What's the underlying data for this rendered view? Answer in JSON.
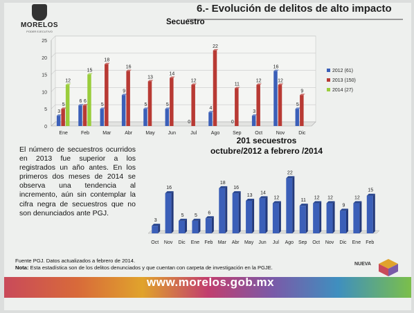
{
  "header": {
    "logo_text": "MORELOS",
    "logo_sub": "PODER EJECUTIVO",
    "page_title": "6.- Evolución de delitos de alto impacto"
  },
  "paragraph": "El número de secuestros ocurridos en 2013 fue superior a los registrados un año antes. En los primeros dos meses de 2014 se observa una tendencia al incremento, aún sin contemplar la cifra negra de secuestros que no son denunciados ante PGJ.",
  "footer": {
    "source": "Fuente PGJ. Datos actualizados a febrero de 2014.",
    "note_label": "Nota:",
    "note_text": "Esta estadística son de los delitos denunciados y que cuentan con carpeta de investigación en la PGJE."
  },
  "banner": {
    "url": "www.morelos.gob.mx",
    "badge": "NUEVA"
  },
  "colors": {
    "blue": "#3b5fb8",
    "red": "#b83a34",
    "green": "#9acd3c",
    "axis": "#888888"
  },
  "chart_data": [
    {
      "type": "bar",
      "title": "Secuestro",
      "categories": [
        "Ene",
        "Feb",
        "Mar",
        "Abr",
        "May",
        "Jun",
        "Jul",
        "Ago",
        "Sep",
        "Oct",
        "Nov",
        "Dic"
      ],
      "series": [
        {
          "name": "2012 (61)",
          "color": "#3b5fb8",
          "values": [
            3,
            6,
            5,
            9,
            5,
            5,
            0,
            4,
            0,
            3,
            16,
            5
          ]
        },
        {
          "name": "2013 (150)",
          "color": "#b83a34",
          "values": [
            5,
            6,
            18,
            16,
            13,
            14,
            12,
            22,
            11,
            12,
            12,
            9
          ]
        },
        {
          "name": "2014 (27)",
          "color": "#9acd3c",
          "values": [
            12,
            15,
            null,
            null,
            null,
            null,
            null,
            null,
            null,
            null,
            null,
            null
          ]
        }
      ],
      "ylim": [
        0,
        25
      ],
      "yticks": [
        0,
        5,
        10,
        15,
        20,
        25
      ],
      "grid": true,
      "legend": "right"
    },
    {
      "type": "bar",
      "title": "201 secuestros\noctubre/2012 a febrero /2014",
      "categories": [
        "Oct",
        "Nov",
        "Dic",
        "Ene",
        "Feb",
        "Mar",
        "Abr",
        "May",
        "Jun",
        "Jul",
        "Ago",
        "Sep",
        "Oct",
        "Nov",
        "Dic",
        "Ene",
        "Feb"
      ],
      "values": [
        3,
        16,
        5,
        5,
        6,
        18,
        16,
        13,
        14,
        12,
        22,
        11,
        12,
        12,
        9,
        12,
        15
      ],
      "ylim": [
        0,
        23
      ],
      "color": "#3b5fb8"
    }
  ]
}
